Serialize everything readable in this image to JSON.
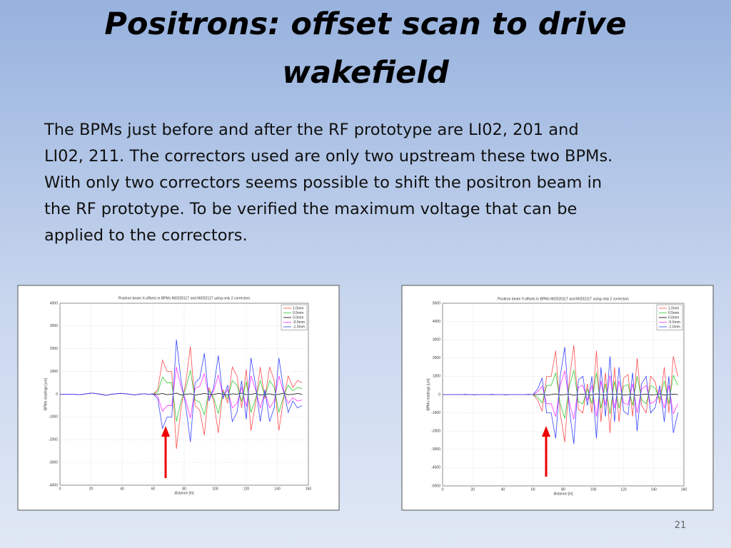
{
  "slide": {
    "title_lines": [
      "Positrons: offset scan to drive",
      "wakefield"
    ],
    "body_lines": [
      "The BPMs just before and after the RF prototype are LI02, 201 and",
      "LI02, 211. The correctors used are only two upstream these two BPMs.",
      "With only two correctors seems possible to shift the positron beam in",
      "the RF prototype. To be verified the maximum voltage that can be",
      "applied to the correctors."
    ],
    "page_number": "21"
  },
  "chart_data": [
    {
      "type": "line",
      "title": "Positron beam X-offsets in BPMs MI202011T and MI20211T using only 2 correctors",
      "x_label": "distance [m]",
      "y_label": "BPMs readings [um]",
      "xlim": [
        0,
        160
      ],
      "xticks": [
        0,
        20,
        40,
        60,
        80,
        100,
        120,
        140,
        160
      ],
      "ylim": [
        -4000,
        4000
      ],
      "yticks": [
        -4000,
        -3000,
        -2000,
        -1000,
        0,
        1000,
        2000,
        3000,
        4000
      ],
      "grid": true,
      "legend": "upper right",
      "x": [
        0,
        3,
        6,
        9,
        12,
        15,
        18,
        21,
        24,
        27,
        30,
        33,
        36,
        39,
        42,
        45,
        48,
        51,
        54,
        57,
        60,
        63,
        66,
        69,
        72,
        75,
        78,
        81,
        84,
        87,
        90,
        93,
        96,
        99,
        102,
        105,
        108,
        111,
        114,
        117,
        120,
        123,
        126,
        129,
        132,
        135,
        138,
        141,
        144,
        147,
        150,
        153,
        156
      ],
      "series": [
        {
          "name": "1.0mm",
          "color": "#ff4d4d",
          "values": [
            0,
            0,
            0,
            0,
            -20,
            0,
            30,
            50,
            20,
            -10,
            -50,
            0,
            20,
            40,
            20,
            0,
            -30,
            0,
            20,
            0,
            10,
            200,
            1500,
            1000,
            1000,
            -2400,
            -600,
            500,
            2100,
            -500,
            -700,
            -1800,
            300,
            -300,
            -1700,
            200,
            -400,
            1200,
            800,
            -600,
            1100,
            -1600,
            -400,
            1200,
            -200,
            1200,
            600,
            -1600,
            -200,
            800,
            300,
            600,
            500
          ]
        },
        {
          "name": "0.5mm",
          "color": "#33cc33",
          "values": [
            0,
            0,
            0,
            0,
            -20,
            0,
            30,
            50,
            20,
            -10,
            -50,
            0,
            20,
            40,
            20,
            0,
            -30,
            0,
            20,
            0,
            10,
            100,
            750,
            500,
            500,
            -1200,
            -300,
            250,
            1050,
            -250,
            -350,
            -900,
            150,
            -150,
            -850,
            100,
            -200,
            600,
            400,
            -300,
            550,
            -800,
            -200,
            600,
            -100,
            600,
            300,
            -800,
            -100,
            400,
            150,
            300,
            250
          ]
        },
        {
          "name": "0.0mm",
          "color": "#000000",
          "values": [
            0,
            0,
            0,
            0,
            -20,
            0,
            30,
            50,
            20,
            -10,
            -50,
            0,
            20,
            40,
            20,
            0,
            -30,
            0,
            20,
            0,
            10,
            0,
            30,
            -20,
            0,
            50,
            -30,
            0,
            20,
            -40,
            0,
            30,
            0,
            -20,
            40,
            0,
            -30,
            20,
            0,
            50,
            -20,
            0,
            30,
            -40,
            0,
            20,
            -30,
            0,
            40,
            -20,
            0,
            30,
            0
          ]
        },
        {
          "name": "-0.5mm",
          "color": "#ff33ff",
          "values": [
            0,
            0,
            0,
            0,
            -20,
            0,
            30,
            50,
            20,
            -10,
            -50,
            0,
            20,
            40,
            20,
            0,
            -30,
            0,
            20,
            0,
            10,
            -100,
            -750,
            -500,
            -500,
            1200,
            300,
            -250,
            -1050,
            250,
            350,
            900,
            -150,
            150,
            850,
            -100,
            200,
            -600,
            -400,
            300,
            -550,
            800,
            200,
            -600,
            100,
            -600,
            -300,
            800,
            100,
            -400,
            -150,
            -300,
            -250
          ]
        },
        {
          "name": "-1.0mm",
          "color": "#3344ff",
          "values": [
            0,
            0,
            0,
            0,
            -20,
            0,
            30,
            50,
            20,
            -10,
            -50,
            0,
            20,
            40,
            20,
            0,
            -30,
            0,
            20,
            0,
            10,
            -200,
            -1500,
            -1000,
            -1000,
            2400,
            600,
            -500,
            -2100,
            500,
            700,
            1800,
            -300,
            300,
            1700,
            -200,
            400,
            -1200,
            -800,
            600,
            -1100,
            1600,
            400,
            -1200,
            200,
            -1200,
            -600,
            1600,
            200,
            -800,
            -300,
            -600,
            -500
          ]
        }
      ]
    },
    {
      "type": "line",
      "title": "Positron beam Y-offsets in BPMs MI202011T and MI20211T using only 2 correctors",
      "x_label": "distance [m]",
      "y_label": "BPMs readings [um]",
      "xlim": [
        0,
        160
      ],
      "xticks": [
        0,
        20,
        40,
        60,
        80,
        100,
        120,
        140,
        160
      ],
      "ylim": [
        -5000,
        5000
      ],
      "yticks": [
        -5000,
        -4000,
        -3000,
        -2000,
        -1000,
        0,
        1000,
        2000,
        3000,
        4000,
        5000
      ],
      "grid": true,
      "legend": "upper right",
      "x": [
        0,
        3,
        6,
        9,
        12,
        15,
        18,
        21,
        24,
        27,
        30,
        33,
        36,
        39,
        42,
        45,
        48,
        51,
        54,
        57,
        60,
        63,
        66,
        69,
        72,
        75,
        78,
        81,
        84,
        87,
        90,
        93,
        96,
        99,
        102,
        105,
        108,
        111,
        114,
        117,
        120,
        123,
        126,
        129,
        132,
        135,
        138,
        141,
        144,
        147,
        150,
        153,
        156
      ],
      "series": [
        {
          "name": "1.0mm",
          "color": "#ff4d4d",
          "values": [
            0,
            0,
            0,
            0,
            0,
            10,
            0,
            -10,
            0,
            0,
            0,
            10,
            0,
            0,
            -10,
            0,
            0,
            0,
            0,
            10,
            0,
            -300,
            -900,
            1000,
            1000,
            2400,
            -1000,
            -2600,
            800,
            2700,
            -800,
            -1000,
            600,
            -1000,
            2400,
            -1500,
            1200,
            -2100,
            1500,
            -1500,
            900,
            1100,
            -1200,
            2000,
            -600,
            -1000,
            1000,
            700,
            -500,
            1500,
            -1000,
            2100,
            1000
          ]
        },
        {
          "name": "0.5mm",
          "color": "#33cc33",
          "values": [
            0,
            0,
            0,
            0,
            0,
            10,
            0,
            -10,
            0,
            0,
            0,
            10,
            0,
            0,
            -10,
            0,
            0,
            0,
            0,
            10,
            0,
            -150,
            -450,
            500,
            500,
            1200,
            -500,
            -1300,
            400,
            1350,
            -400,
            -500,
            300,
            -500,
            1200,
            -750,
            600,
            -1050,
            750,
            -750,
            450,
            550,
            -600,
            1000,
            -300,
            -500,
            500,
            350,
            -250,
            750,
            -500,
            1050,
            500
          ]
        },
        {
          "name": "0.0mm",
          "color": "#000000",
          "values": [
            0,
            0,
            0,
            0,
            0,
            10,
            0,
            -10,
            0,
            0,
            0,
            10,
            0,
            0,
            -10,
            0,
            0,
            0,
            0,
            10,
            0,
            0,
            20,
            -30,
            0,
            40,
            -20,
            0,
            30,
            -40,
            0,
            20,
            0,
            -30,
            40,
            0,
            -20,
            30,
            0,
            40,
            -30,
            0,
            20,
            -40,
            0,
            30,
            -20,
            0,
            40,
            -30,
            0,
            20,
            0
          ]
        },
        {
          "name": "-0.5mm",
          "color": "#ff33ff",
          "values": [
            0,
            0,
            0,
            0,
            0,
            10,
            0,
            -10,
            0,
            0,
            0,
            10,
            0,
            0,
            -10,
            0,
            0,
            0,
            0,
            10,
            0,
            150,
            450,
            -500,
            -500,
            -1200,
            500,
            1300,
            -400,
            -1350,
            400,
            500,
            -300,
            500,
            -1200,
            750,
            -600,
            1050,
            -750,
            750,
            -450,
            -550,
            600,
            -1000,
            300,
            500,
            -500,
            -350,
            250,
            -750,
            500,
            -1050,
            -500
          ]
        },
        {
          "name": "-1.0mm",
          "color": "#3344ff",
          "values": [
            0,
            0,
            0,
            0,
            0,
            10,
            0,
            -10,
            0,
            0,
            0,
            10,
            0,
            0,
            -10,
            0,
            0,
            0,
            0,
            10,
            0,
            300,
            900,
            -1000,
            -1000,
            -2400,
            1000,
            2600,
            -800,
            -2700,
            800,
            1000,
            -600,
            1000,
            -2400,
            1500,
            -1200,
            2100,
            -1500,
            1500,
            -900,
            -1100,
            1200,
            -2000,
            600,
            1000,
            -1000,
            -700,
            500,
            -1500,
            1000,
            -2100,
            -1000
          ]
        }
      ]
    }
  ]
}
